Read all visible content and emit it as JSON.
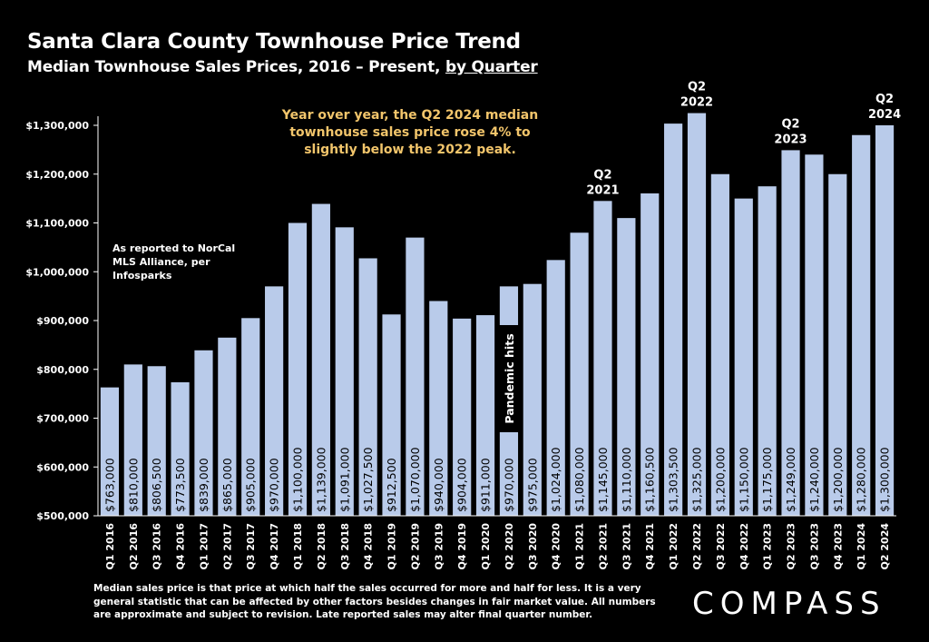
{
  "header": {
    "title": "Santa Clara County Townhouse Price Trend",
    "subtitle_main": "Median Townhouse Sales Prices, 2016 – Present, ",
    "subtitle_link": "by Quarter"
  },
  "callout": "Year over year, the Q2 2024 median townhouse sales price rose 4% to slightly below the 2022 peak.",
  "source_note": "As reported to NorCal MLS Alliance, per Infosparks",
  "footnote": "Median sales price is that price at which half the sales occurred for more and half for less. It is a very general statistic that can be affected by other factors besides changes in fair market value. All numbers are approximate and subject to revision. Late reported sales may alter final quarter number.",
  "logo": "COMPASS",
  "colors": {
    "bar": "#b9cbea",
    "background": "#000000",
    "callout": "#f2c56b",
    "axis": "#ffffff"
  },
  "chart_data": {
    "type": "bar",
    "title": "Median Townhouse Sales Prices, 2016 – Present, by Quarter",
    "xlabel": "",
    "ylabel": "",
    "ylim": [
      500000,
      1300000
    ],
    "yticks": [
      "$500,000",
      "$600,000",
      "$700,000",
      "$800,000",
      "$900,000",
      "$1,000,000",
      "$1,100,000",
      "$1,200,000",
      "$1,300,000"
    ],
    "ytick_values": [
      500000,
      600000,
      700000,
      800000,
      900000,
      1000000,
      1100000,
      1200000,
      1300000
    ],
    "categories": [
      "Q1 2016",
      "Q2 2016",
      "Q3 2016",
      "Q4 2016",
      "Q1 2017",
      "Q2 2017",
      "Q3 2017",
      "Q4 2017",
      "Q1 2018",
      "Q2 2018",
      "Q3 2018",
      "Q4 2018",
      "Q1 2019",
      "Q2 2019",
      "Q3 2019",
      "Q4 2019",
      "Q1 2020",
      "Q2 2020",
      "Q3 2020",
      "Q4 2020",
      "Q1 2021",
      "Q2 2021",
      "Q3 2021",
      "Q4 2021",
      "Q1 2022",
      "Q2 2022",
      "Q3 2022",
      "Q4 2022",
      "Q1 2023",
      "Q2 2023",
      "Q3 2023",
      "Q4 2023",
      "Q1 2024",
      "Q2 2024"
    ],
    "values": [
      763000,
      810000,
      806500,
      773500,
      839000,
      865000,
      905000,
      970000,
      1100000,
      1139000,
      1091000,
      1027500,
      912500,
      1070000,
      940000,
      904000,
      911000,
      970000,
      975000,
      1024000,
      1080000,
      1145000,
      1110000,
      1160500,
      1303500,
      1325000,
      1200000,
      1150000,
      1175000,
      1249000,
      1240000,
      1200000,
      1280000,
      1300000
    ],
    "value_labels": [
      "$763,000",
      "$810,000",
      "$806,500",
      "$773,500",
      "$839,000",
      "$865,000",
      "$905,000",
      "$970,000",
      "$1,100,000",
      "$1,139,000",
      "$1,091,000",
      "$1,027,500",
      "$912,500",
      "$1,070,000",
      "$940,000",
      "$904,000",
      "$911,000",
      "$970,000",
      "$975,000",
      "$1,024,000",
      "$1,080,000",
      "$1,145,000",
      "$1,110,000",
      "$1,160,500",
      "$1,303,500",
      "$1,325,000",
      "$1,200,000",
      "$1,150,000",
      "$1,175,000",
      "$1,249,000",
      "$1,240,000",
      "$1,200,000",
      "$1,280,000",
      "$1,300,000"
    ],
    "annotations": [
      {
        "category": "Q2 2021",
        "lines": [
          "Q2",
          "2021"
        ]
      },
      {
        "category": "Q2 2022",
        "lines": [
          "Q2",
          "2022"
        ]
      },
      {
        "category": "Q2 2023",
        "lines": [
          "Q2",
          "2023"
        ]
      },
      {
        "category": "Q2 2024",
        "lines": [
          "Q2",
          "2024"
        ]
      }
    ],
    "event_label": {
      "category": "Q2 2020",
      "text": "Pandemic hits"
    }
  }
}
